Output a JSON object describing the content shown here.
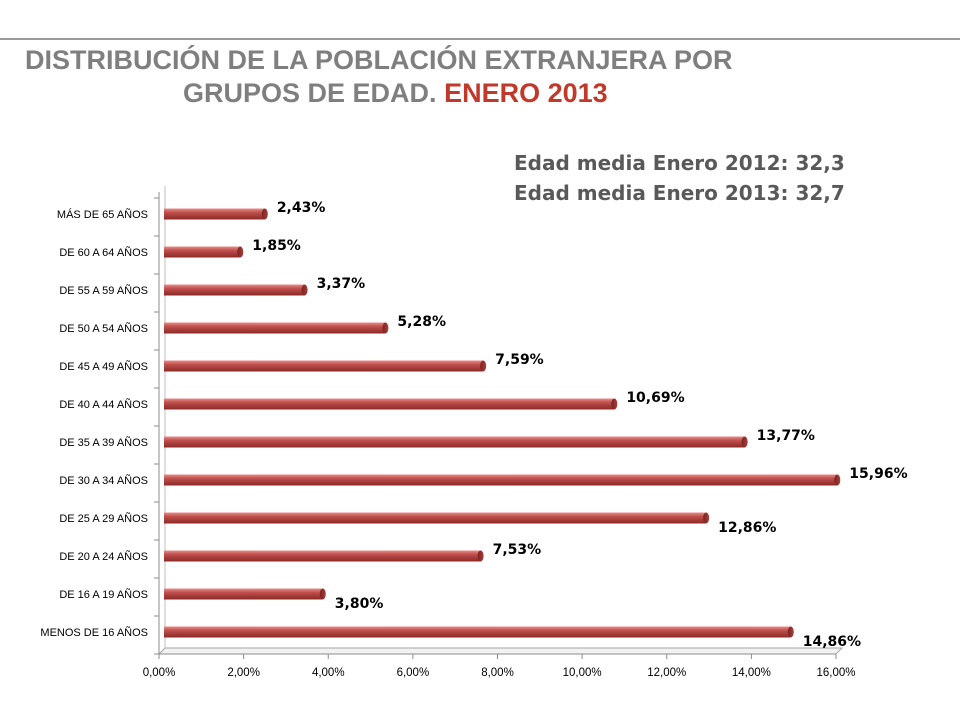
{
  "title": {
    "line1": "DISTRIBUCIÓN DE LA POBLACIÓN EXTRANJERA POR",
    "line2_prefix": "GRUPOS DE EDAD.",
    "line2_highlight": "ENERO 2013"
  },
  "notes": {
    "line1": "Edad media Enero 2012: 32,3",
    "line2": "Edad media Enero 2013: 32,7"
  },
  "colors": {
    "bar": "#c0504d",
    "title_gray": "#7f7f7f",
    "accent": "#c0392b"
  },
  "chart_data": {
    "type": "bar",
    "orientation": "horizontal",
    "categories": [
      "MÁS DE 65 AÑOS",
      "DE 60 A 64 AÑOS",
      "DE 55 A 59 AÑOS",
      "DE 50 A 54 AÑOS",
      "DE 45 A 49 AÑOS",
      "DE 40 A 44 AÑOS",
      "DE 35 A 39 AÑOS",
      "DE 30 A 34 AÑOS",
      "DE 25 A 29 AÑOS",
      "DE 20 A 24 AÑOS",
      "DE 16 A 19 AÑOS",
      "MENOS DE 16 AÑOS"
    ],
    "values": [
      2.43,
      1.85,
      3.37,
      5.28,
      7.59,
      10.69,
      13.77,
      15.96,
      12.86,
      7.53,
      3.8,
      14.86
    ],
    "value_labels": [
      "2,43%",
      "1,85%",
      "3,37%",
      "5,28%",
      "7,59%",
      "10,69%",
      "13,77%",
      "15,96%",
      "12,86%",
      "7,53%",
      "3,80%",
      "14,86%"
    ],
    "xlim": [
      0,
      16
    ],
    "xticks": [
      "0,00%",
      "2,00%",
      "4,00%",
      "6,00%",
      "8,00%",
      "10,00%",
      "12,00%",
      "14,00%",
      "16,00%"
    ],
    "grid": false,
    "legend": "none"
  }
}
